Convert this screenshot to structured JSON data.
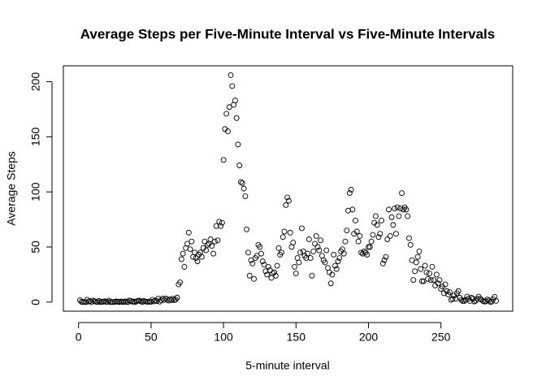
{
  "chart_data": {
    "type": "scatter",
    "title": "Average Steps per Five-Minute Interval vs Five-Minute Intervals",
    "x_label": "5-minute interval",
    "y_label": "Average Steps",
    "xlim": [
      -10.48,
      299.48
    ],
    "ylim": [
      -8.25,
      214.42
    ],
    "xticks": [
      0,
      50,
      100,
      150,
      200,
      250
    ],
    "yticks": [
      0,
      50,
      100,
      150,
      200
    ],
    "grid": false,
    "color": "#000000",
    "x": [
      1,
      2,
      3,
      4,
      5,
      6,
      7,
      8,
      9,
      10,
      11,
      12,
      13,
      14,
      15,
      16,
      17,
      18,
      19,
      20,
      21,
      22,
      23,
      24,
      25,
      26,
      27,
      28,
      29,
      30,
      31,
      32,
      33,
      34,
      35,
      36,
      37,
      38,
      39,
      40,
      41,
      42,
      43,
      44,
      45,
      46,
      47,
      48,
      49,
      50,
      51,
      52,
      53,
      54,
      55,
      56,
      57,
      58,
      59,
      60,
      61,
      62,
      63,
      64,
      65,
      66,
      67,
      68,
      69,
      70,
      71,
      72,
      73,
      74,
      75,
      76,
      77,
      78,
      79,
      80,
      81,
      82,
      83,
      84,
      85,
      86,
      87,
      88,
      89,
      90,
      91,
      92,
      93,
      94,
      95,
      96,
      97,
      98,
      99,
      100,
      101,
      102,
      103,
      104,
      105,
      106,
      107,
      108,
      109,
      110,
      111,
      112,
      113,
      114,
      115,
      116,
      117,
      118,
      119,
      120,
      121,
      122,
      123,
      124,
      125,
      126,
      127,
      128,
      129,
      130,
      131,
      132,
      133,
      134,
      135,
      136,
      137,
      138,
      139,
      140,
      141,
      142,
      143,
      144,
      145,
      146,
      147,
      148,
      149,
      150,
      151,
      152,
      153,
      154,
      155,
      156,
      157,
      158,
      159,
      160,
      161,
      162,
      163,
      164,
      165,
      166,
      167,
      168,
      169,
      170,
      171,
      172,
      173,
      174,
      175,
      176,
      177,
      178,
      179,
      180,
      181,
      182,
      183,
      184,
      185,
      186,
      187,
      188,
      189,
      190,
      191,
      192,
      193,
      194,
      195,
      196,
      197,
      198,
      199,
      200,
      201,
      202,
      203,
      204,
      205,
      206,
      207,
      208,
      209,
      210,
      211,
      212,
      213,
      214,
      215,
      216,
      217,
      218,
      219,
      220,
      221,
      222,
      223,
      224,
      225,
      226,
      227,
      228,
      229,
      230,
      231,
      232,
      233,
      234,
      235,
      236,
      237,
      238,
      239,
      240,
      241,
      242,
      243,
      244,
      245,
      246,
      247,
      248,
      249,
      250,
      251,
      252,
      253,
      254,
      255,
      256,
      257,
      258,
      259,
      260,
      261,
      262,
      263,
      264,
      265,
      266,
      267,
      268,
      269,
      270,
      271,
      272,
      273,
      274,
      275,
      276,
      277,
      278,
      279,
      280,
      281,
      282,
      283,
      284,
      285,
      286,
      287,
      288
    ],
    "values": [
      1.7,
      0.3,
      0.1,
      0.2,
      0,
      2.1,
      0.5,
      0.9,
      0,
      1.5,
      0.8,
      0.4,
      0,
      1.1,
      0.1,
      0.2,
      0.4,
      0.8,
      0.2,
      0.3,
      1.4,
      0,
      0,
      0.1,
      0.2,
      0.6,
      0.4,
      0,
      0.5,
      0.3,
      0,
      0.6,
      0.2,
      0,
      1.5,
      1,
      0.4,
      0.5,
      0,
      0.7,
      1.2,
      1.3,
      0.6,
      0.1,
      1.1,
      0.6,
      0.4,
      0.2,
      0.5,
      0.3,
      2.1,
      0.6,
      1.5,
      0.9,
      3.1,
      0.4,
      1.7,
      3.2,
      1.9,
      3.4,
      2.4,
      1.4,
      2.6,
      1.7,
      3,
      1.8,
      2.3,
      4.1,
      16,
      18,
      39,
      44,
      32,
      49,
      53,
      63,
      48,
      55,
      41,
      45,
      40,
      37,
      43,
      45,
      41,
      49,
      55,
      47,
      52,
      53,
      57,
      51,
      44,
      55,
      69,
      56,
      73,
      69,
      72,
      129,
      157,
      171,
      155,
      177,
      206,
      196,
      179,
      183,
      167,
      143,
      124,
      109,
      108,
      103,
      96,
      66,
      45,
      24,
      38,
      35,
      21,
      40,
      42,
      52,
      50,
      44,
      37,
      34,
      28,
      25,
      32,
      29,
      22,
      26,
      27,
      24,
      33,
      49,
      43,
      45,
      59,
      64,
      88,
      95,
      92,
      63,
      50,
      54,
      32,
      26,
      40,
      36,
      45,
      67,
      46,
      42,
      40,
      44,
      57,
      40,
      24,
      46,
      53,
      60,
      50,
      47,
      56,
      42,
      38,
      36,
      47,
      31,
      27,
      17,
      25,
      43,
      33,
      30,
      37,
      40,
      46,
      48,
      44,
      55,
      65,
      83,
      99,
      102,
      84,
      62,
      74,
      64,
      55,
      60,
      45,
      44,
      46,
      45,
      43,
      50,
      50,
      55,
      61,
      72,
      78,
      70,
      59,
      62,
      74,
      35,
      38,
      41,
      57,
      84,
      60,
      77,
      70,
      85,
      62,
      86,
      78,
      85,
      99,
      84,
      86,
      84,
      78,
      58,
      52,
      38,
      20,
      28,
      36,
      41,
      46,
      30,
      19,
      19,
      33,
      27,
      21,
      26,
      20,
      32,
      20,
      15,
      25,
      17,
      20,
      12,
      14,
      8,
      16,
      10,
      7,
      9,
      2,
      3,
      6,
      3,
      8,
      10,
      4,
      2,
      1,
      0.9,
      2,
      5,
      3,
      1,
      4,
      3,
      0.5,
      1.2,
      3,
      5,
      3,
      2,
      1,
      0.5,
      0.6,
      2.4,
      1.5,
      0.2,
      0.4,
      2.6,
      4.7,
      1.1
    ]
  }
}
